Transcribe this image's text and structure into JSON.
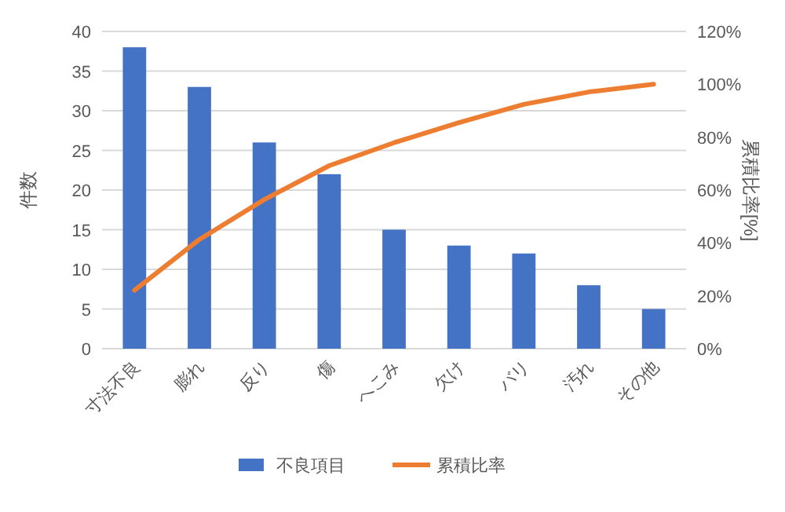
{
  "chart_data": {
    "type": "bar",
    "categories": [
      "寸法不良",
      "膨れ",
      "反り",
      "傷",
      "へこみ",
      "欠け",
      "バリ",
      "汚れ",
      "その他"
    ],
    "ylabel": "件数",
    "y2label": "累積比率[%]",
    "series": [
      {
        "name": "不良項目",
        "color": "#4472c4",
        "values": [
          38,
          33,
          26,
          22,
          15,
          13,
          12,
          8,
          5
        ]
      },
      {
        "name": "累積比率",
        "type": "line",
        "axis": "y2",
        "color": "#ed7d31",
        "values": [
          22.1,
          41.3,
          56.4,
          69.2,
          77.9,
          85.5,
          92.4,
          97.1,
          100
        ]
      }
    ],
    "ylim": [
      0,
      40
    ],
    "yticks": [
      0,
      5,
      10,
      15,
      20,
      25,
      30,
      35,
      40
    ],
    "y2lim": [
      0,
      120
    ],
    "y2ticks": [
      {
        "value": 0,
        "label": "0%"
      },
      {
        "value": 20,
        "label": "20%"
      },
      {
        "value": 40,
        "label": "40%"
      },
      {
        "value": 60,
        "label": "60%"
      },
      {
        "value": 80,
        "label": "80%"
      },
      {
        "value": 100,
        "label": "100%"
      },
      {
        "value": 120,
        "label": "120%"
      }
    ],
    "grid": "y",
    "legend": "bottom"
  }
}
